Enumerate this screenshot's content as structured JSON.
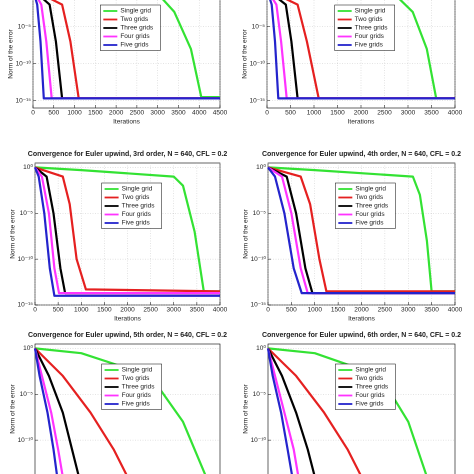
{
  "chart_data": [
    {
      "type": "line",
      "xlabel": "Iterations",
      "ylabel": "Norm of the error",
      "log_y": true,
      "grid": true,
      "legend": "upper right",
      "xlim": [
        0,
        4500
      ],
      "xticks": [
        0,
        500,
        1000,
        1500,
        2000,
        2500,
        3000,
        3500,
        4000,
        4500
      ],
      "ylim": [
        1e-16,
        100
      ],
      "yticks": [
        {
          "value": 1e-05,
          "label": "10⁻⁵"
        },
        {
          "value": 1e-10,
          "label": "10⁻¹⁰"
        },
        {
          "value": 1e-15,
          "label": "10⁻¹⁵"
        }
      ],
      "series": [
        {
          "name": "Single grid",
          "color": "#33e233",
          "x": [
            0,
            3000,
            3400,
            3800,
            4050,
            4500
          ],
          "values": [
            1,
            0.3,
            0.001,
            1e-08,
            3e-15,
            3e-15
          ]
        },
        {
          "name": "Two grids",
          "color": "#e52020",
          "x": [
            0,
            700,
            900,
            1100,
            4500
          ],
          "values": [
            1,
            0.01,
            1e-07,
            2e-15,
            2e-15
          ]
        },
        {
          "name": "Three grids",
          "color": "#000000",
          "x": [
            0,
            400,
            550,
            700,
            4500
          ],
          "values": [
            1,
            0.01,
            1e-07,
            2e-15,
            2e-15
          ]
        },
        {
          "name": "Four grids",
          "color": "#ff33ff",
          "x": [
            0,
            200,
            320,
            450,
            4500
          ],
          "values": [
            1,
            0.01,
            1e-07,
            2e-15,
            2e-15
          ]
        },
        {
          "name": "Five grids",
          "color": "#2424cc",
          "x": [
            0,
            100,
            180,
            260,
            4500
          ],
          "values": [
            1,
            0.01,
            1e-07,
            2e-15,
            2e-15
          ]
        }
      ]
    },
    {
      "type": "line",
      "xlabel": "Iterations",
      "ylabel": "Norm of the error",
      "log_y": true,
      "grid": true,
      "legend": "upper right",
      "xlim": [
        0,
        4000
      ],
      "xticks": [
        0,
        500,
        1000,
        1500,
        2000,
        2500,
        3000,
        3500,
        4000
      ],
      "ylim": [
        1e-16,
        100
      ],
      "yticks": [
        {
          "value": 1e-05,
          "label": "10⁻⁵"
        },
        {
          "value": 1e-10,
          "label": "10⁻¹⁰"
        },
        {
          "value": 1e-15,
          "label": "10⁻¹⁵"
        }
      ],
      "series": [
        {
          "name": "Single grid",
          "color": "#33e233",
          "x": [
            0,
            2700,
            3100,
            3400,
            3600,
            4000
          ],
          "values": [
            1,
            0.3,
            0.001,
            1e-08,
            2e-15,
            2e-15
          ]
        },
        {
          "name": "Two grids",
          "color": "#e52020",
          "x": [
            0,
            650,
            850,
            1100,
            4000
          ],
          "values": [
            1,
            0.01,
            1e-07,
            2e-15,
            2e-15
          ]
        },
        {
          "name": "Three grids",
          "color": "#000000",
          "x": [
            0,
            400,
            520,
            650,
            4000
          ],
          "values": [
            1,
            0.01,
            1e-07,
            2e-15,
            2e-15
          ]
        },
        {
          "name": "Four grids",
          "color": "#ff33ff",
          "x": [
            0,
            200,
            300,
            420,
            4000
          ],
          "values": [
            1,
            0.01,
            1e-07,
            2e-15,
            2e-15
          ]
        },
        {
          "name": "Five grids",
          "color": "#2424cc",
          "x": [
            0,
            100,
            170,
            240,
            4000
          ],
          "values": [
            1,
            0.01,
            1e-07,
            2e-15,
            2e-15
          ]
        }
      ]
    },
    {
      "type": "line",
      "title": "Convergence for Euler upwind, 3rd order, N = 640, CFL = 0.2",
      "xlabel": "Iterations",
      "ylabel": "Norm of the error",
      "log_y": true,
      "grid": true,
      "legend": "upper right",
      "xlim": [
        0,
        4000
      ],
      "xticks": [
        0,
        500,
        1000,
        1500,
        2000,
        2500,
        3000,
        3500,
        4000
      ],
      "ylim": [
        1e-15,
        3
      ],
      "yticks": [
        {
          "value": 1,
          "label": "10⁰"
        },
        {
          "value": 1e-05,
          "label": "10⁻⁵"
        },
        {
          "value": 1e-10,
          "label": "10⁻¹⁰"
        },
        {
          "value": 1e-15,
          "label": "10⁻¹⁵"
        }
      ],
      "series": [
        {
          "name": "Single grid",
          "color": "#33e233",
          "x": [
            0,
            1000,
            3000,
            3200,
            3450,
            3650,
            4000
          ],
          "values": [
            1,
            0.5,
            0.1,
            0.01,
            1e-07,
            3e-14,
            3e-14
          ]
        },
        {
          "name": "Two grids",
          "color": "#e52020",
          "x": [
            0,
            600,
            750,
            900,
            1100,
            4000
          ],
          "values": [
            1,
            0.1,
            0.0001,
            1e-10,
            5e-14,
            3e-14
          ]
        },
        {
          "name": "Three grids",
          "color": "#000000",
          "x": [
            0,
            250,
            400,
            550,
            650,
            4000
          ],
          "values": [
            1,
            0.1,
            1e-05,
            1e-11,
            2e-14,
            2e-14
          ]
        },
        {
          "name": "Four grids",
          "color": "#ff33ff",
          "x": [
            0,
            150,
            300,
            420,
            520,
            4000
          ],
          "values": [
            1,
            0.1,
            1e-05,
            1e-11,
            2e-14,
            2e-14
          ]
        },
        {
          "name": "Five grids",
          "color": "#2424cc",
          "x": [
            0,
            80,
            200,
            320,
            420,
            4000
          ],
          "values": [
            1,
            0.1,
            1e-05,
            1e-11,
            1e-14,
            1e-14
          ]
        }
      ]
    },
    {
      "type": "line",
      "title": "Convergence for Euler upwind, 4th order, N = 640, CFL = 0.2",
      "xlabel": "Iterations",
      "ylabel": "Norm of the error",
      "log_y": true,
      "grid": true,
      "legend": "upper right",
      "xlim": [
        0,
        4000
      ],
      "xticks": [
        0,
        500,
        1000,
        1500,
        2000,
        2500,
        3000,
        3500,
        4000
      ],
      "ylim": [
        1e-15,
        3
      ],
      "yticks": [
        {
          "value": 1,
          "label": "10⁰"
        },
        {
          "value": 1e-05,
          "label": "10⁻⁵"
        },
        {
          "value": 1e-10,
          "label": "10⁻¹⁰"
        },
        {
          "value": 1e-15,
          "label": "10⁻¹⁵"
        }
      ],
      "series": [
        {
          "name": "Single grid",
          "color": "#33e233",
          "x": [
            0,
            1000,
            3100,
            3250,
            3400,
            3500,
            4000
          ],
          "values": [
            1,
            0.5,
            0.1,
            0.001,
            1e-08,
            3e-14,
            3e-14
          ]
        },
        {
          "name": "Two grids",
          "color": "#e52020",
          "x": [
            0,
            700,
            900,
            1100,
            1250,
            4000
          ],
          "values": [
            1,
            0.1,
            0.0001,
            1e-10,
            3e-14,
            3e-14
          ]
        },
        {
          "name": "Three grids",
          "color": "#000000",
          "x": [
            0,
            400,
            600,
            800,
            950,
            4000
          ],
          "values": [
            1,
            0.1,
            1e-05,
            1e-11,
            2e-14,
            2e-14
          ]
        },
        {
          "name": "Four grids",
          "color": "#ff33ff",
          "x": [
            0,
            300,
            500,
            700,
            850,
            4000
          ],
          "values": [
            1,
            0.1,
            1e-05,
            1e-11,
            2e-14,
            2e-14
          ]
        },
        {
          "name": "Five grids",
          "color": "#2424cc",
          "x": [
            0,
            150,
            350,
            550,
            720,
            4000
          ],
          "values": [
            1,
            0.1,
            1e-05,
            1e-11,
            2e-14,
            2e-14
          ]
        }
      ]
    },
    {
      "type": "line",
      "title": "Convergence for Euler upwind, 5th order, N = 640, CFL = 0.2",
      "ylabel": "Norm of the error",
      "log_y": true,
      "grid": true,
      "legend": "upper right",
      "xlim": [
        0,
        4000
      ],
      "ylim": [
        1e-15,
        3
      ],
      "yticks": [
        {
          "value": 1,
          "label": "10⁰"
        },
        {
          "value": 1e-05,
          "label": "10⁻⁵"
        },
        {
          "value": 1e-10,
          "label": "10⁻¹⁰"
        }
      ],
      "series": [
        {
          "name": "Single grid",
          "color": "#33e233",
          "x": [
            0,
            1000,
            2500,
            3200,
            3700
          ],
          "values": [
            1,
            0.3,
            0.001,
            1e-08,
            1e-14
          ]
        },
        {
          "name": "Two grids",
          "color": "#e52020",
          "x": [
            0,
            600,
            1200,
            1700,
            2000
          ],
          "values": [
            1,
            0.001,
            1e-07,
            1e-11,
            1e-14
          ]
        },
        {
          "name": "Three grids",
          "color": "#000000",
          "x": [
            0,
            300,
            600,
            800,
            950
          ],
          "values": [
            1,
            0.001,
            1e-07,
            1e-11,
            1e-14
          ]
        },
        {
          "name": "Four grids",
          "color": "#ff33ff",
          "x": [
            0,
            150,
            350,
            500,
            600
          ],
          "values": [
            1,
            0.001,
            1e-07,
            1e-11,
            1e-14
          ]
        },
        {
          "name": "Five grids",
          "color": "#2424cc",
          "x": [
            0,
            100,
            270,
            400,
            480
          ],
          "values": [
            1,
            0.001,
            1e-07,
            1e-11,
            1e-14
          ]
        }
      ]
    },
    {
      "type": "line",
      "title": "Convergence for Euler upwind, 6th order, N = 640, CFL = 0.2",
      "ylabel": "Norm of the error",
      "log_y": true,
      "grid": true,
      "legend": "upper right",
      "xlim": [
        0,
        4000
      ],
      "ylim": [
        1e-15,
        3
      ],
      "yticks": [
        {
          "value": 1,
          "label": "10⁰"
        },
        {
          "value": 1e-05,
          "label": "10⁻⁵"
        },
        {
          "value": 1e-10,
          "label": "10⁻¹⁰"
        }
      ],
      "series": [
        {
          "name": "Single grid",
          "color": "#33e233",
          "x": [
            0,
            1000,
            2400,
            3000,
            3400
          ],
          "values": [
            1,
            0.3,
            0.001,
            1e-08,
            1e-14
          ]
        },
        {
          "name": "Two grids",
          "color": "#e52020",
          "x": [
            0,
            600,
            1200,
            1700,
            2000
          ],
          "values": [
            1,
            0.001,
            1e-07,
            1e-11,
            1e-14
          ]
        },
        {
          "name": "Three grids",
          "color": "#000000",
          "x": [
            0,
            300,
            600,
            850,
            1000
          ],
          "values": [
            1,
            0.001,
            1e-07,
            1e-11,
            1e-14
          ]
        },
        {
          "name": "Four grids",
          "color": "#ff33ff",
          "x": [
            0,
            150,
            350,
            550,
            650
          ],
          "values": [
            1,
            0.001,
            1e-07,
            1e-11,
            1e-14
          ]
        },
        {
          "name": "Five grids",
          "color": "#2424cc",
          "x": [
            0,
            100,
            280,
            420,
            520
          ],
          "values": [
            1,
            0.001,
            1e-07,
            1e-11,
            1e-14
          ]
        }
      ]
    }
  ]
}
